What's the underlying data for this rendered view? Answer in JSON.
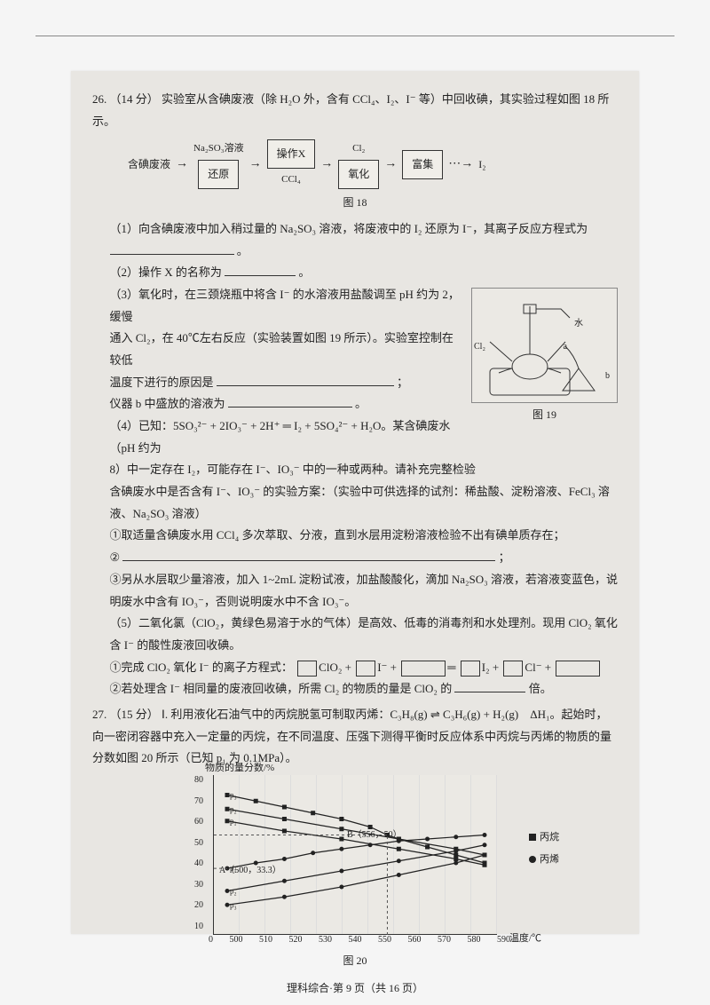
{
  "q26": {
    "number": "26.",
    "points": "（14 分）",
    "stem": "实验室从含碘废液（除 H₂O 外，含有 CCl₄、I₂、I⁻ 等）中回收碘，其实验过程如图 18 所示。",
    "flow": {
      "input": "含碘废液",
      "top1": "Na₂SO₃溶液",
      "box1": "还原",
      "box2": "操作X",
      "bottom2": "CCl₄",
      "top3": "Cl₂",
      "box3": "氧化",
      "box4": "富集",
      "output": "I₂",
      "caption": "图 18"
    },
    "p1": "（1）向含碘废液中加入稍过量的 Na₂SO₃ 溶液，将废液中的 I₂ 还原为 I⁻，其离子反应方程式为",
    "p1_end": "。",
    "p2": "（2）操作 X 的名称为",
    "p2_end": "。",
    "p3a": "（3）氧化时，在三颈烧瓶中将含 I⁻ 的水溶液用盐酸调至 pH 约为 2，缓慢",
    "p3b": "通入 Cl₂，在 40℃左右反应（实验装置如图 19 所示）。实验室控制在较低",
    "p3c": "温度下进行的原因是",
    "p3c_end": "；",
    "p3d": "仪器 b 中盛放的溶液为",
    "p3d_end": "。",
    "fig19_caption": "图 19",
    "fig19_labels": {
      "water": "水",
      "cl2": "Cl₂",
      "a": "a",
      "b": "b"
    },
    "p4a": "（4）已知：5SO₃²⁻ + 2IO₃⁻ + 2H⁺ ═ I₂ + 5SO₄²⁻ + H₂O。某含碘废水（pH 约为",
    "p4b": "8）中一定存在 I₂，可能存在 I⁻、IO₃⁻ 中的一种或两种。请补充完整检验",
    "p4c": "含碘废水中是否含有 I⁻、IO₃⁻ 的实验方案：（实验中可供选择的试剂：稀盐酸、淀粉溶液、FeCl₃ 溶液、Na₂SO₃ 溶液）",
    "p4_1": "①取适量含碘废水用 CCl₄ 多次萃取、分液，直到水层用淀粉溶液检验不出有碘单质存在；",
    "p4_2": "②",
    "p4_2_end": "；",
    "p4_3": "③另从水层取少量溶液，加入 1~2mL 淀粉试液，加盐酸酸化，滴加 Na₂SO₃ 溶液，若溶液变蓝色，说明废水中含有 IO₃⁻，否则说明废水中不含 IO₃⁻。",
    "p5a": "（5）二氧化氯（ClO₂，黄绿色易溶于水的气体）是高效、低毒的消毒剂和水处理剂。现用 ClO₂ 氧化含 I⁻ 的酸性废液回收碘。",
    "p5_1": "①完成 ClO₂ 氧化 I⁻ 的离子方程式：",
    "p5_1_eq": {
      "a": "ClO₂ +",
      "b": "I⁻ +",
      "c": "═",
      "d": "I₂ +",
      "e": "Cl⁻ +"
    },
    "p5_2a": "②若处理含 I⁻ 相同量的废液回收碘，所需 Cl₂ 的物质的量是 ClO₂ 的",
    "p5_2b": "倍。"
  },
  "q27": {
    "number": "27.",
    "points": "（15 分）",
    "part": "Ⅰ.",
    "stem1": "利用液化石油气中的丙烷脱氢可制取丙烯：C₃H₈(g) ⇌ C₃H₆(g) + H₂(g)　ΔH₁。起始时，向一密闭容器中充入一定量的丙烷，在不同温度、压强下测得平衡时反应体系中丙烷与丙烯的物质的量分数如图 20 所示（已知 p₁ 为 0.1MPa）。",
    "chart": {
      "y_title": "物质的量分数/%",
      "x_title": "温度/℃",
      "caption": "图 20",
      "y_ticks": [
        "80",
        "70",
        "60",
        "50",
        "40",
        "30",
        "20",
        "10"
      ],
      "x_ticks": [
        "0",
        "500",
        "510",
        "520",
        "530",
        "540",
        "550",
        "560",
        "570",
        "580",
        "590"
      ],
      "point_A": "A（500，33.3）",
      "point_B": "B（556，50）",
      "p_labels": [
        "p₃",
        "p₂",
        "p₁",
        "p₃",
        "p₂",
        "p₁"
      ],
      "legend": {
        "square": "丙烷",
        "circle": "丙烯"
      },
      "series": {
        "propane_p1": {
          "marker": "square",
          "pts": [
            [
              500,
              70
            ],
            [
              510,
              67
            ],
            [
              520,
              64
            ],
            [
              530,
              61
            ],
            [
              540,
              58
            ],
            [
              550,
              54
            ],
            [
              556,
              50
            ],
            [
              560,
              48
            ],
            [
              570,
              44
            ],
            [
              580,
              40
            ],
            [
              590,
              36
            ]
          ]
        },
        "propane_p2": {
          "marker": "square",
          "pts": [
            [
              500,
              63
            ],
            [
              520,
              58
            ],
            [
              540,
              53
            ],
            [
              560,
              48
            ],
            [
              580,
              43
            ],
            [
              590,
              40
            ]
          ]
        },
        "propane_p3": {
          "marker": "square",
          "pts": [
            [
              500,
              57
            ],
            [
              520,
              52
            ],
            [
              540,
              48
            ],
            [
              560,
              43
            ],
            [
              580,
              38
            ],
            [
              590,
              35
            ]
          ]
        },
        "propene_p1": {
          "marker": "circle",
          "pts": [
            [
              500,
              15
            ],
            [
              520,
              19
            ],
            [
              540,
              24
            ],
            [
              560,
              30
            ],
            [
              580,
              36
            ],
            [
              590,
              40
            ]
          ]
        },
        "propene_p2": {
          "marker": "circle",
          "pts": [
            [
              500,
              22
            ],
            [
              520,
              27
            ],
            [
              540,
              32
            ],
            [
              560,
              37
            ],
            [
              580,
              42
            ],
            [
              590,
              45
            ]
          ]
        },
        "propene_p3": {
          "marker": "circle",
          "pts": [
            [
              500,
              33.3
            ],
            [
              510,
              36
            ],
            [
              520,
              38
            ],
            [
              530,
              41
            ],
            [
              540,
              43
            ],
            [
              550,
              45
            ],
            [
              560,
              47
            ],
            [
              570,
              48
            ],
            [
              580,
              49
            ],
            [
              590,
              50
            ]
          ]
        }
      },
      "colors": {
        "line": "#222",
        "marker": "#222",
        "grid": "#ddd",
        "bg": "#ebe9e4"
      }
    }
  },
  "footer": "理科综合·第 9 页（共 16 页）"
}
